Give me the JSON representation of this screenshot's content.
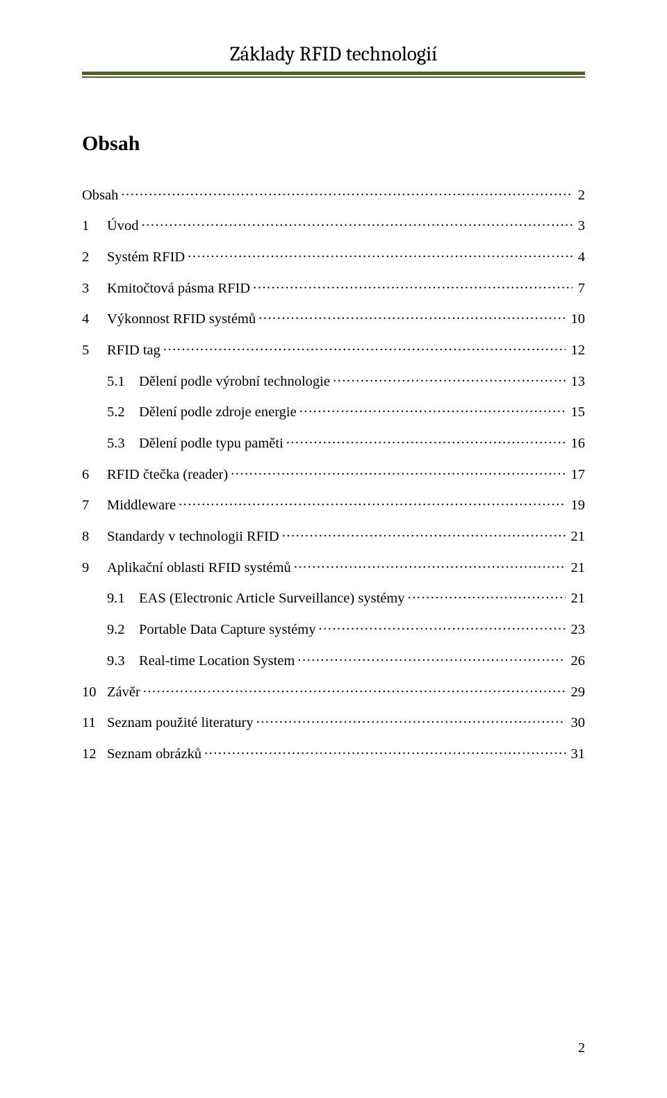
{
  "header": {
    "running_title": "Základy RFID technologií",
    "rule_color": "#4f6228"
  },
  "title": "Obsah",
  "toc": [
    {
      "level": 0,
      "num": "",
      "label": "Obsah",
      "page": "2"
    },
    {
      "level": 0,
      "num": "1",
      "label": "Úvod",
      "page": "3"
    },
    {
      "level": 0,
      "num": "2",
      "label": "Systém RFID",
      "page": "4"
    },
    {
      "level": 0,
      "num": "3",
      "label": "Kmitočtová pásma RFID",
      "page": "7"
    },
    {
      "level": 0,
      "num": "4",
      "label": "Výkonnost RFID systémů",
      "page": "10"
    },
    {
      "level": 0,
      "num": "5",
      "label": "RFID tag",
      "page": "12"
    },
    {
      "level": 1,
      "num": "5.1",
      "label": "Dělení podle výrobní technologie",
      "page": "13"
    },
    {
      "level": 1,
      "num": "5.2",
      "label": "Dělení podle zdroje energie",
      "page": "15"
    },
    {
      "level": 1,
      "num": "5.3",
      "label": "Dělení podle typu paměti",
      "page": "16"
    },
    {
      "level": 0,
      "num": "6",
      "label": "RFID čtečka (reader)",
      "page": "17"
    },
    {
      "level": 0,
      "num": "7",
      "label": "Middleware",
      "page": "19"
    },
    {
      "level": 0,
      "num": "8",
      "label": "Standardy v technologii RFID",
      "page": "21"
    },
    {
      "level": 0,
      "num": "9",
      "label": "Aplikační oblasti RFID systémů",
      "page": "21"
    },
    {
      "level": 1,
      "num": "9.1",
      "label": "EAS (Electronic Article Surveillance) systémy",
      "page": "21"
    },
    {
      "level": 1,
      "num": "9.2",
      "label": "Portable Data Capture systémy",
      "page": "23"
    },
    {
      "level": 1,
      "num": "9.3",
      "label": "Real-time Location System",
      "page": "26"
    },
    {
      "level": 0,
      "num": "10",
      "label": "Závěr",
      "page": "29"
    },
    {
      "level": 0,
      "num": "11",
      "label": "Seznam použité literatury",
      "page": "30"
    },
    {
      "level": 0,
      "num": "12",
      "label": "Seznam obrázků",
      "page": "31"
    }
  ],
  "page_number": "2",
  "typography": {
    "heading_font": "Cambria",
    "body_font": "Times New Roman",
    "running_title_fontsize_pt": 22,
    "h1_fontsize_pt": 22,
    "toc_fontsize_pt": 15,
    "text_color": "#000000",
    "background_color": "#ffffff"
  }
}
